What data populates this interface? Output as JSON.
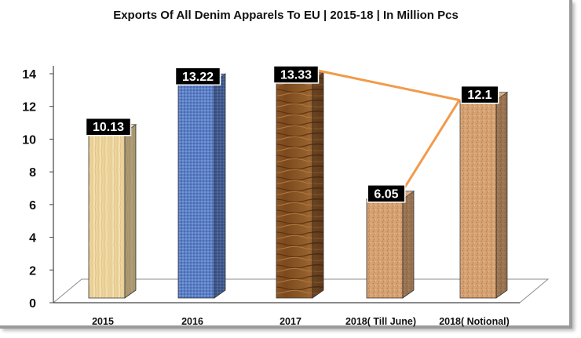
{
  "chart_data": {
    "type": "bar",
    "title": "Exports Of All Denim Apparels To EU | 2015-18 | In Million Pcs",
    "categories": [
      "2015",
      "2016",
      "2017",
      "2018( Till June)",
      "2018( Notional)"
    ],
    "values": [
      10.13,
      13.22,
      13.33,
      6.05,
      12.1
    ],
    "value_labels": [
      "10.13",
      "13.22",
      "13.33",
      "6.05",
      "12.1"
    ],
    "yticks": [
      "0",
      "2",
      "4",
      "6",
      "8",
      "10",
      "12",
      "14"
    ],
    "ylim": [
      0,
      14
    ],
    "grid": false,
    "legend": "none",
    "bar_styles": [
      "light-wood",
      "blue-textile",
      "dark-wood",
      "cork",
      "cork"
    ],
    "connector": {
      "from_category": "2017",
      "via_category": "2018( Notional)",
      "to_category": "2018( Till June)",
      "color": "#f29a4a"
    },
    "colors": {
      "light-wood": "#efd9a3",
      "blue-textile": "#5b7fc6",
      "dark-wood": "#8a5524",
      "cork": "#d7a273",
      "label_box": "#000000",
      "label_text": "#ffffff",
      "connector": "#f29a4a"
    }
  }
}
